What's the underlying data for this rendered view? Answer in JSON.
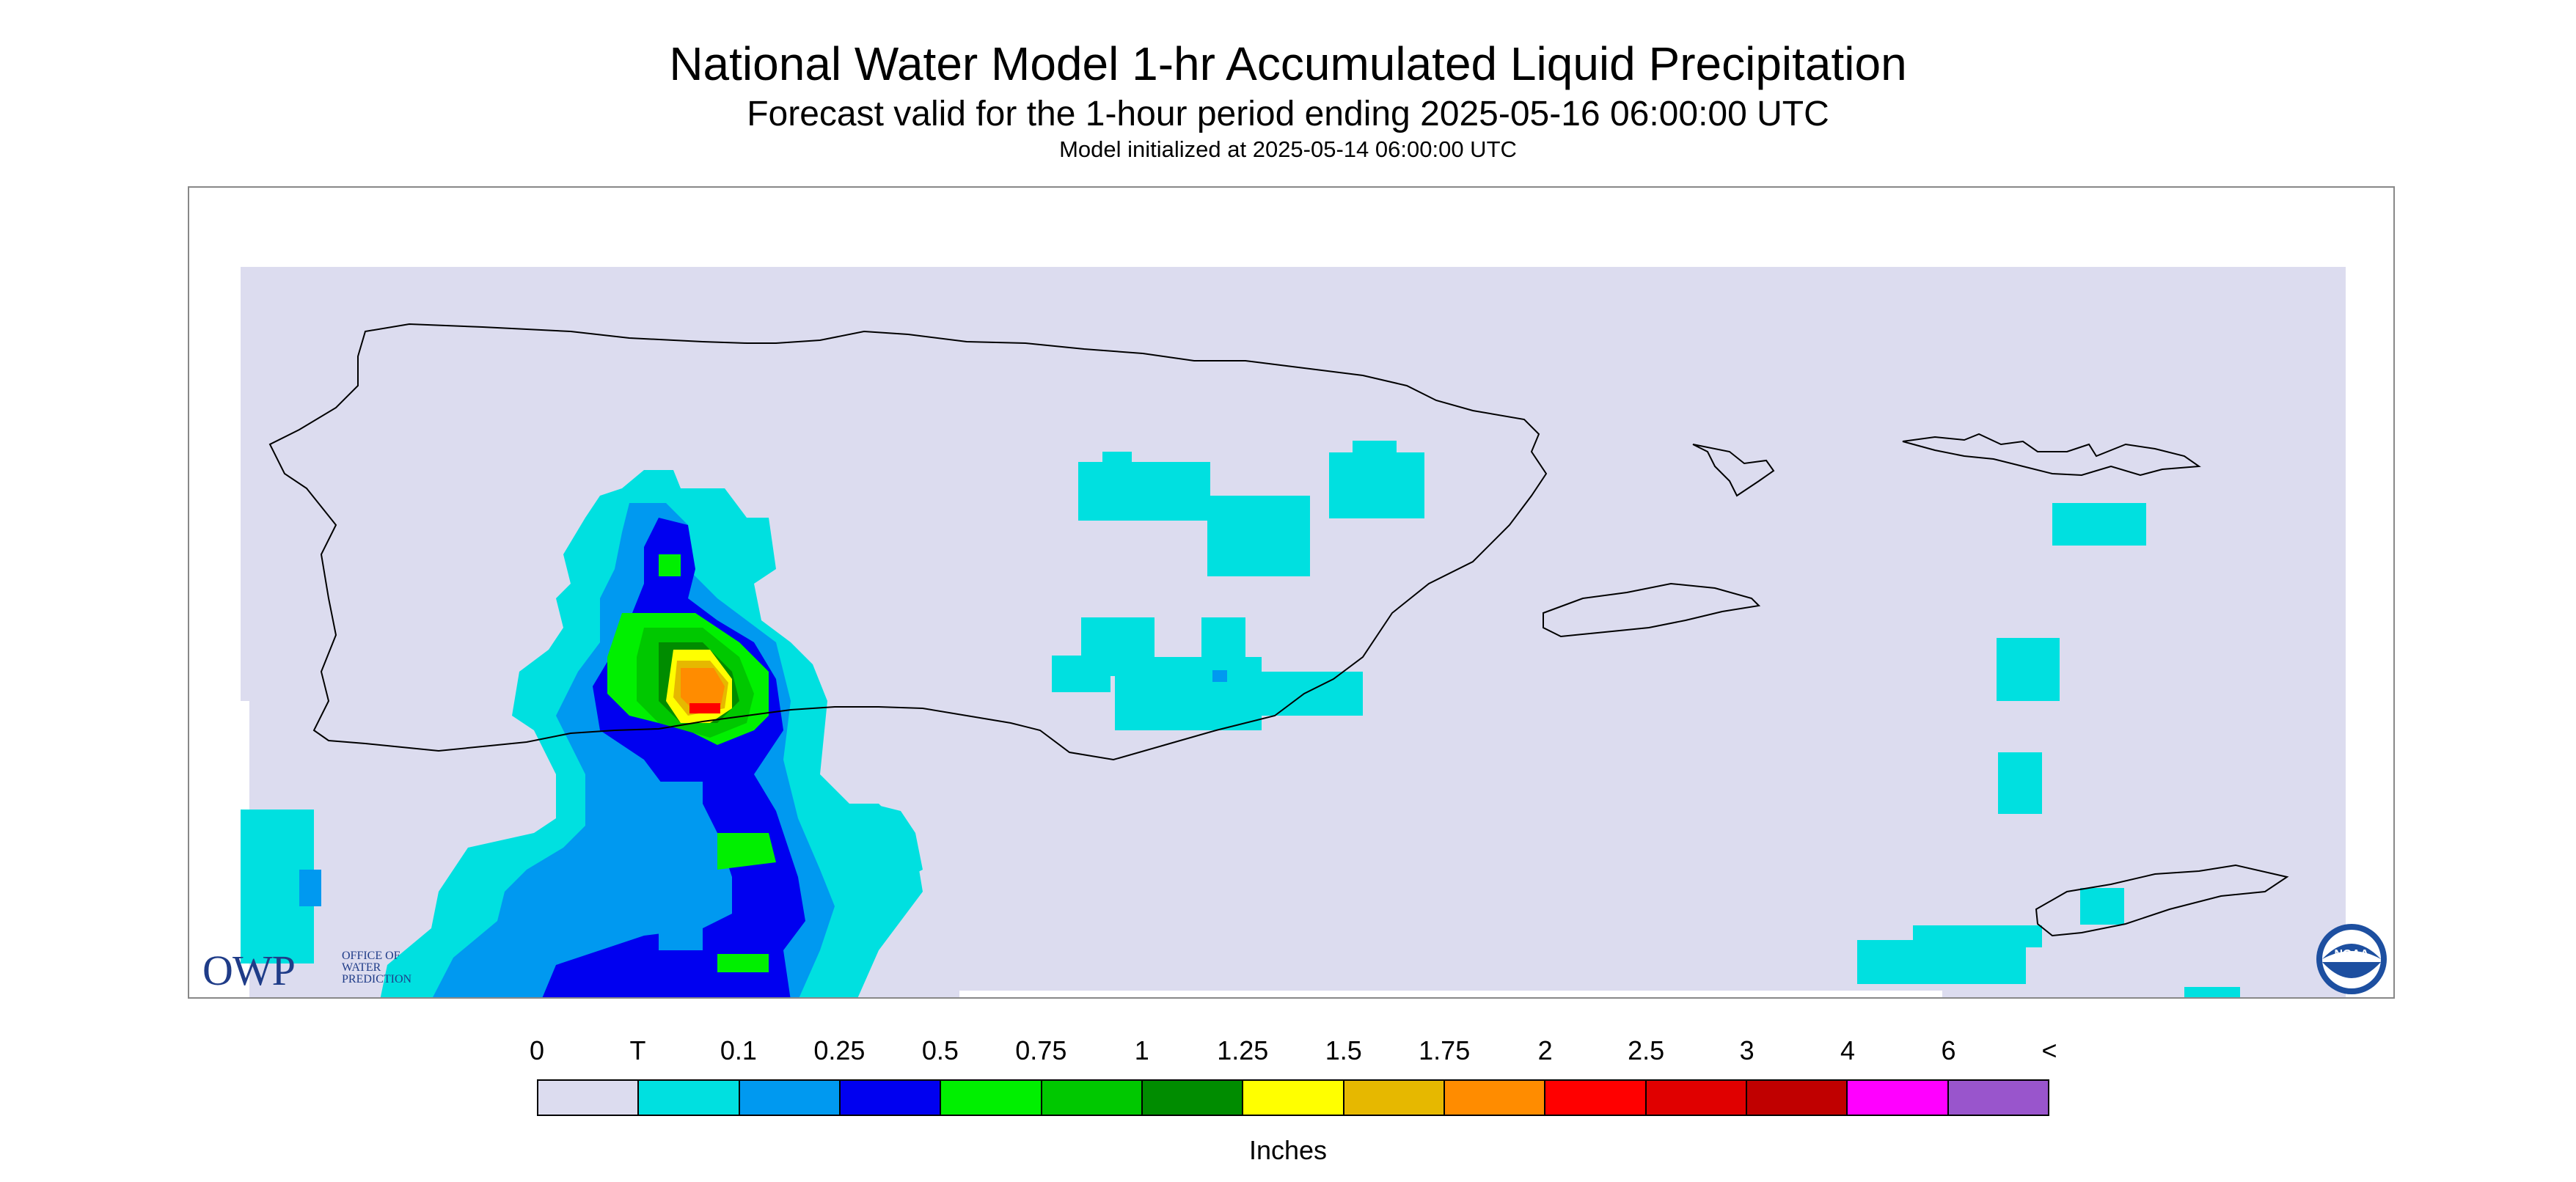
{
  "header": {
    "title": "National Water Model 1-hr Accumulated Liquid Precipitation",
    "subtitle": "Forecast valid for the 1-hour period ending 2025-05-16 06:00:00 UTC",
    "init_line": "Model initialized at 2025-05-14 06:00:00 UTC"
  },
  "logos": {
    "owp_mark": "OWP",
    "owp_text_1": "OFFICE OF",
    "owp_text_2": "WATER",
    "owp_text_3": "PREDICTION",
    "noaa_mark": "NOAA",
    "noaa_icon": "noaa-logo-icon",
    "owp_icon": "owp-logo-icon"
  },
  "legend": {
    "units_label": "Inches",
    "tick_labels": [
      "0",
      "T",
      "0.1",
      "0.25",
      "0.5",
      "0.75",
      "1",
      "1.25",
      "1.5",
      "1.75",
      "2",
      "2.5",
      "3",
      "4",
      "6",
      "<"
    ],
    "colors": [
      "#dcdcef",
      "#00e0e0",
      "#0099f0",
      "#0000f0",
      "#00f000",
      "#00c800",
      "#008c00",
      "#ffff00",
      "#e6b800",
      "#ff8c00",
      "#ff0000",
      "#e00000",
      "#c00000",
      "#ff00ff",
      "#9955cc"
    ]
  },
  "colors": {
    "background_field": "#dcdcef",
    "coastline": "#000000",
    "owp_blue": "#1f3c88",
    "noaa_blue": "#1d4fa0"
  }
}
